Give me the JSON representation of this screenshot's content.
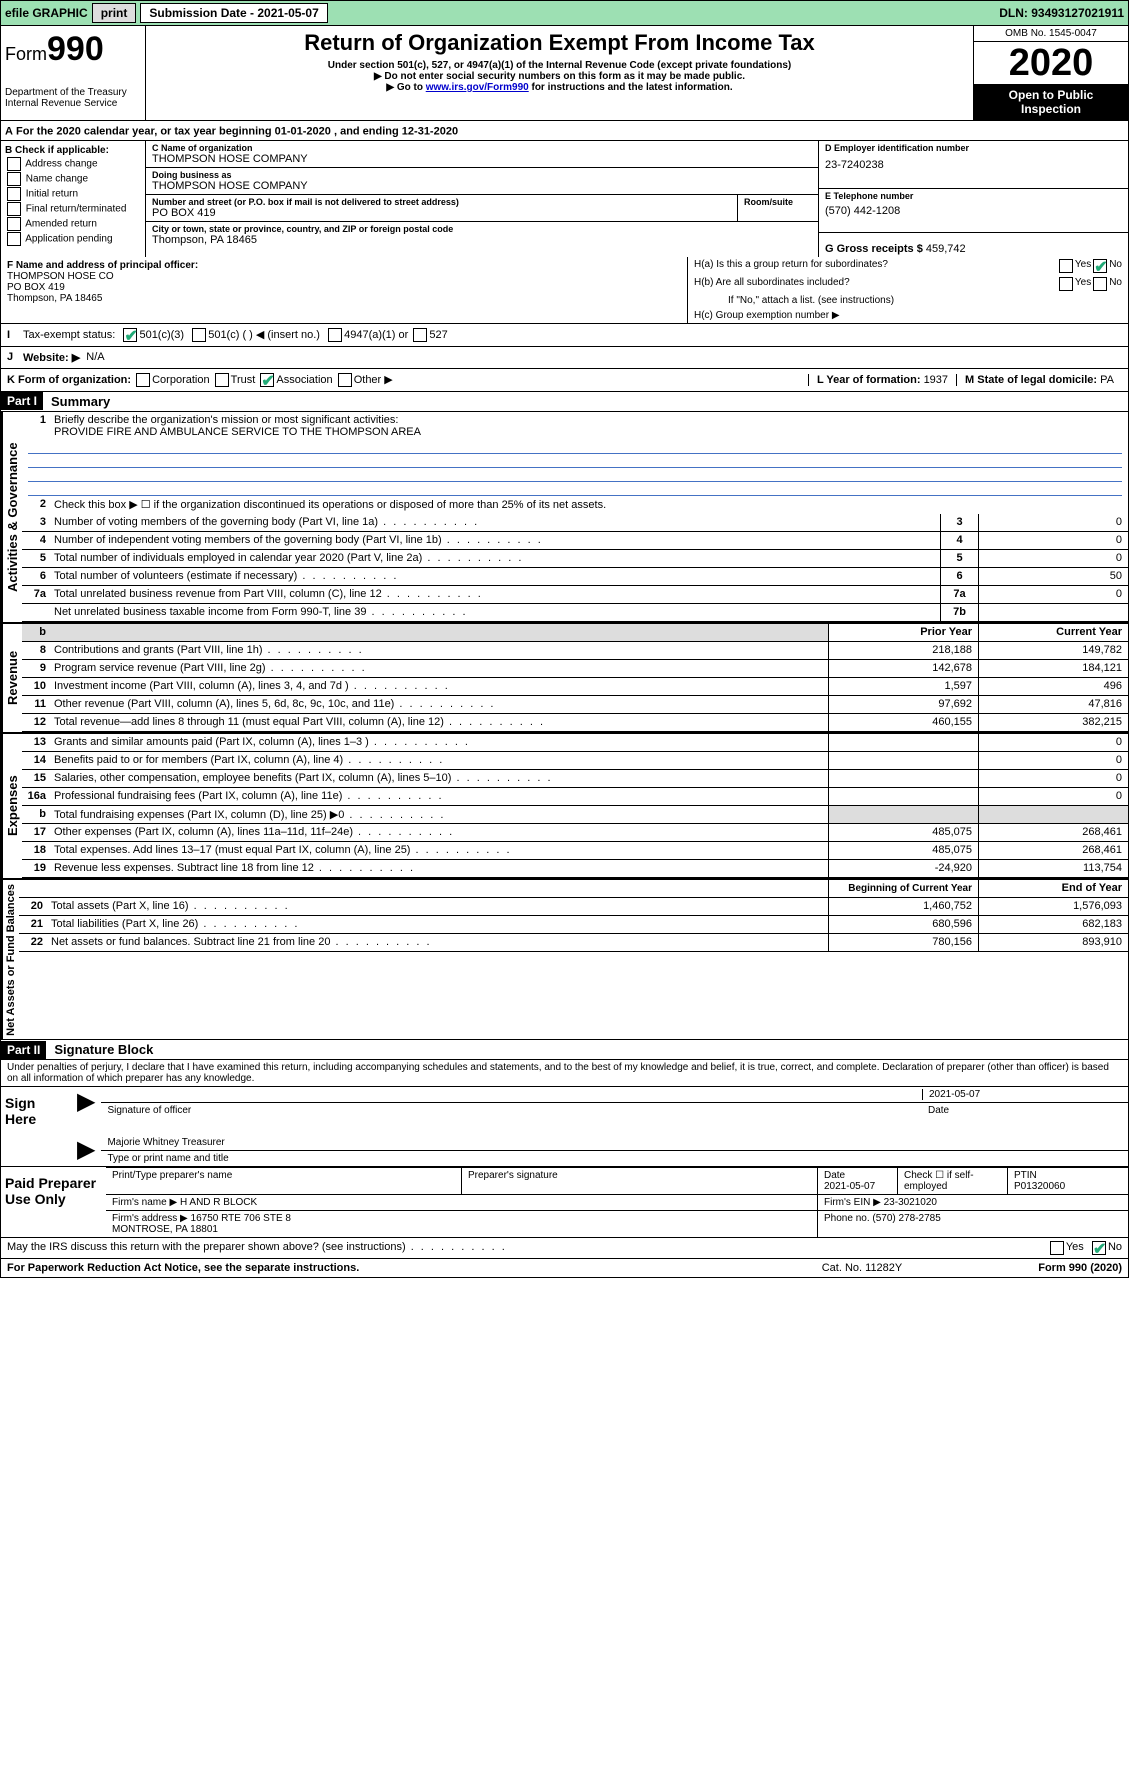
{
  "topbar": {
    "efile": "efile GRAPHIC",
    "print": "print",
    "subdate_label": "Submission Date - 2021-05-07",
    "dln": "DLN: 93493127021911"
  },
  "header": {
    "form_prefix": "Form",
    "form_number": "990",
    "dept": "Department of the Treasury\nInternal Revenue Service",
    "title": "Return of Organization Exempt From Income Tax",
    "sub1": "Under section 501(c), 527, or 4947(a)(1) of the Internal Revenue Code (except private foundations)",
    "sub2": "▶ Do not enter social security numbers on this form as it may be made public.",
    "sub3_pre": "▶ Go to ",
    "sub3_link": "www.irs.gov/Form990",
    "sub3_post": " for instructions and the latest information.",
    "omb": "OMB No. 1545-0047",
    "year": "2020",
    "open": "Open to Public Inspection"
  },
  "period": {
    "text_pre": "For the 2020 calendar year, or tax year beginning ",
    "begin": "01-01-2020",
    "mid": " , and ending ",
    "end": "12-31-2020"
  },
  "boxB": {
    "label": "B Check if applicable:",
    "items": [
      "Address change",
      "Name change",
      "Initial return",
      "Final return/terminated",
      "Amended return",
      "Application pending"
    ]
  },
  "boxC": {
    "name_label": "C Name of organization",
    "name": "THOMPSON HOSE COMPANY",
    "dba_label": "Doing business as",
    "dba": "THOMPSON HOSE COMPANY",
    "addr_label": "Number and street (or P.O. box if mail is not delivered to street address)",
    "room_label": "Room/suite",
    "addr": "PO BOX 419",
    "city_label": "City or town, state or province, country, and ZIP or foreign postal code",
    "city": "Thompson, PA  18465"
  },
  "boxD": {
    "label": "D Employer identification number",
    "value": "23-7240238"
  },
  "boxE": {
    "label": "E Telephone number",
    "value": "(570) 442-1208"
  },
  "boxG": {
    "label": "G Gross receipts $",
    "value": "459,742"
  },
  "boxF": {
    "label": "F  Name and address of principal officer:",
    "name": "THOMPSON HOSE CO",
    "addr1": "PO BOX 419",
    "addr2": "Thompson, PA  18465"
  },
  "boxH": {
    "ha": "H(a)  Is this a group return for subordinates?",
    "hb": "H(b)  Are all subordinates included?",
    "hb_note": "If \"No,\" attach a list. (see instructions)",
    "hc": "H(c)  Group exemption number ▶",
    "yes": "Yes",
    "no": "No"
  },
  "rowI": {
    "label": "Tax-exempt status:",
    "opt1": "501(c)(3)",
    "opt2": "501(c) (   ) ◀ (insert no.)",
    "opt3": "4947(a)(1) or",
    "opt4": "527"
  },
  "rowJ": {
    "label": "Website: ▶",
    "value": "N/A"
  },
  "rowK": {
    "label": "K Form of organization:",
    "opts": [
      "Corporation",
      "Trust",
      "Association",
      "Other ▶"
    ],
    "l_label": "L Year of formation:",
    "l_val": "1937",
    "m_label": "M State of legal domicile:",
    "m_val": "PA"
  },
  "part1": {
    "hdr": "Part I",
    "title": "Summary",
    "l1_label": "Briefly describe the organization's mission or most significant activities:",
    "l1_text": "PROVIDE FIRE AND AMBULANCE SERVICE TO THE THOMPSON AREA",
    "l2": "Check this box ▶ ☐  if the organization discontinued its operations or disposed of more than 25% of its net assets.",
    "lines_gov": [
      {
        "n": "3",
        "t": "Number of voting members of the governing body (Part VI, line 1a)",
        "b": "3",
        "v": "0"
      },
      {
        "n": "4",
        "t": "Number of independent voting members of the governing body (Part VI, line 1b)",
        "b": "4",
        "v": "0"
      },
      {
        "n": "5",
        "t": "Total number of individuals employed in calendar year 2020 (Part V, line 2a)",
        "b": "5",
        "v": "0"
      },
      {
        "n": "6",
        "t": "Total number of volunteers (estimate if necessary)",
        "b": "6",
        "v": "50"
      },
      {
        "n": "7a",
        "t": "Total unrelated business revenue from Part VIII, column (C), line 12",
        "b": "7a",
        "v": "0"
      },
      {
        "n": "",
        "t": "Net unrelated business taxable income from Form 990-T, line 39",
        "b": "7b",
        "v": ""
      }
    ],
    "col_prior": "Prior Year",
    "col_curr": "Current Year",
    "rev": [
      {
        "n": "8",
        "t": "Contributions and grants (Part VIII, line 1h)",
        "p": "218,188",
        "c": "149,782"
      },
      {
        "n": "9",
        "t": "Program service revenue (Part VIII, line 2g)",
        "p": "142,678",
        "c": "184,121"
      },
      {
        "n": "10",
        "t": "Investment income (Part VIII, column (A), lines 3, 4, and 7d )",
        "p": "1,597",
        "c": "496"
      },
      {
        "n": "11",
        "t": "Other revenue (Part VIII, column (A), lines 5, 6d, 8c, 9c, 10c, and 11e)",
        "p": "97,692",
        "c": "47,816"
      },
      {
        "n": "12",
        "t": "Total revenue—add lines 8 through 11 (must equal Part VIII, column (A), line 12)",
        "p": "460,155",
        "c": "382,215"
      }
    ],
    "exp": [
      {
        "n": "13",
        "t": "Grants and similar amounts paid (Part IX, column (A), lines 1–3 )",
        "p": "",
        "c": "0"
      },
      {
        "n": "14",
        "t": "Benefits paid to or for members (Part IX, column (A), line 4)",
        "p": "",
        "c": "0"
      },
      {
        "n": "15",
        "t": "Salaries, other compensation, employee benefits (Part IX, column (A), lines 5–10)",
        "p": "",
        "c": "0"
      },
      {
        "n": "16a",
        "t": "Professional fundraising fees (Part IX, column (A), line 11e)",
        "p": "",
        "c": "0"
      },
      {
        "n": "b",
        "t": "Total fundraising expenses (Part IX, column (D), line 25) ▶0",
        "p": "grey",
        "c": "grey"
      },
      {
        "n": "17",
        "t": "Other expenses (Part IX, column (A), lines 11a–11d, 11f–24e)",
        "p": "485,075",
        "c": "268,461"
      },
      {
        "n": "18",
        "t": "Total expenses. Add lines 13–17 (must equal Part IX, column (A), line 25)",
        "p": "485,075",
        "c": "268,461"
      },
      {
        "n": "19",
        "t": "Revenue less expenses. Subtract line 18 from line 12",
        "p": "-24,920",
        "c": "113,754"
      }
    ],
    "col_boy": "Beginning of Current Year",
    "col_eoy": "End of Year",
    "net": [
      {
        "n": "20",
        "t": "Total assets (Part X, line 16)",
        "p": "1,460,752",
        "c": "1,576,093"
      },
      {
        "n": "21",
        "t": "Total liabilities (Part X, line 26)",
        "p": "680,596",
        "c": "682,183"
      },
      {
        "n": "22",
        "t": "Net assets or fund balances. Subtract line 21 from line 20",
        "p": "780,156",
        "c": "893,910"
      }
    ],
    "side_gov": "Activities & Governance",
    "side_rev": "Revenue",
    "side_exp": "Expenses",
    "side_net": "Net Assets or Fund Balances"
  },
  "part2": {
    "hdr": "Part II",
    "title": "Signature Block",
    "perjury": "Under penalties of perjury, I declare that I have examined this return, including accompanying schedules and statements, and to the best of my knowledge and belief, it is true, correct, and complete. Declaration of preparer (other than officer) is based on all information of which preparer has any knowledge.",
    "sign_here": "Sign Here",
    "sig_officer": "Signature of officer",
    "sig_date": "2021-05-07",
    "date_label": "Date",
    "officer_name": "Majorie Whitney Treasurer",
    "type_name": "Type or print name and title",
    "paid": "Paid Preparer Use Only",
    "prep_name_label": "Print/Type preparer's name",
    "prep_sig_label": "Preparer's signature",
    "prep_date": "2021-05-07",
    "check_self": "Check ☐ if self-employed",
    "ptin_label": "PTIN",
    "ptin": "P01320060",
    "firm_name_label": "Firm's name    ▶",
    "firm_name": "H AND R BLOCK",
    "firm_ein_label": "Firm's EIN ▶",
    "firm_ein": "23-3021020",
    "firm_addr_label": "Firm's address ▶",
    "firm_addr": "16750 RTE 706 STE 8\nMONTROSE, PA  18801",
    "phone_label": "Phone no.",
    "phone": "(570) 278-2785",
    "discuss": "May the IRS discuss this return with the preparer shown above? (see instructions)"
  },
  "footer": {
    "left": "For Paperwork Reduction Act Notice, see the separate instructions.",
    "mid": "Cat. No. 11282Y",
    "right": "Form 990 (2020)"
  }
}
